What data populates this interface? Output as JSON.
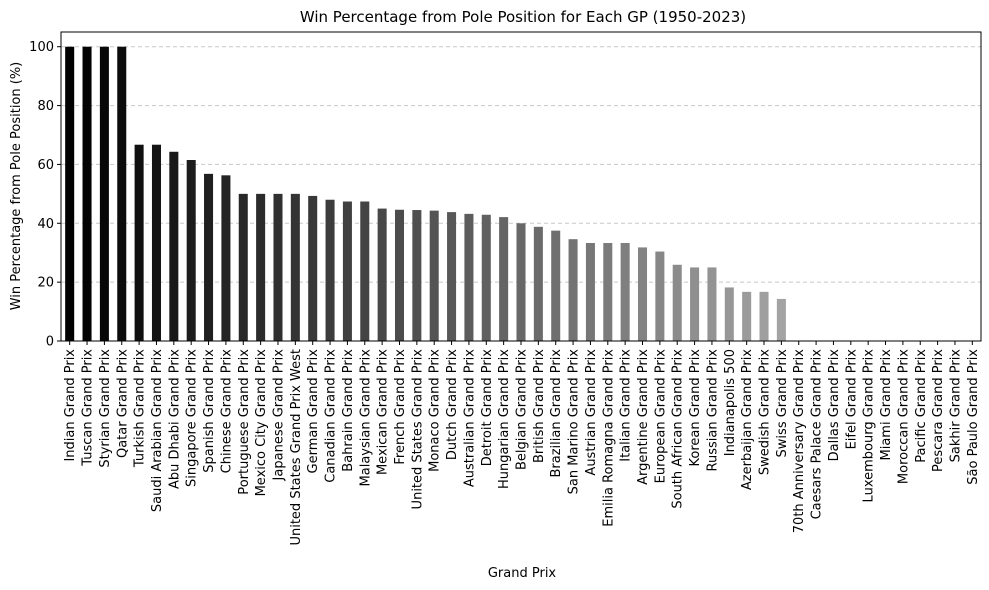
{
  "chart_data": {
    "type": "bar",
    "title": "Win Percentage from Pole Position for Each GP (1950-2023)",
    "xlabel": "Grand Prix",
    "ylabel": "Win Percentage from Pole Position (%)",
    "ylim": [
      0,
      105
    ],
    "yticks": [
      0,
      20,
      40,
      60,
      80,
      100
    ],
    "grid": "y-dashed",
    "categories": [
      "Indian Grand Prix",
      "Tuscan Grand Prix",
      "Styrian Grand Prix",
      "Qatar Grand Prix",
      "Turkish Grand Prix",
      "Saudi Arabian Grand Prix",
      "Abu Dhabi Grand Prix",
      "Singapore Grand Prix",
      "Spanish Grand Prix",
      "Chinese Grand Prix",
      "Portuguese Grand Prix",
      "Mexico City Grand Prix",
      "Japanese Grand Prix",
      "United States Grand Prix West",
      "German Grand Prix",
      "Canadian Grand Prix",
      "Bahrain Grand Prix",
      "Malaysian Grand Prix",
      "Mexican Grand Prix",
      "French Grand Prix",
      "United States Grand Prix",
      "Monaco Grand Prix",
      "Dutch Grand Prix",
      "Australian Grand Prix",
      "Detroit Grand Prix",
      "Hungarian Grand Prix",
      "Belgian Grand Prix",
      "British Grand Prix",
      "Brazilian Grand Prix",
      "San Marino Grand Prix",
      "Austrian Grand Prix",
      "Emilia Romagna Grand Prix",
      "Italian Grand Prix",
      "Argentine Grand Prix",
      "European Grand Prix",
      "South African Grand Prix",
      "Korean Grand Prix",
      "Russian Grand Prix",
      "Indianapolis 500",
      "Azerbaijan Grand Prix",
      "Swedish Grand Prix",
      "Swiss Grand Prix",
      "70th Anniversary Grand Prix",
      "Caesars Palace Grand Prix",
      "Dallas Grand Prix",
      "Eifel Grand Prix",
      "Luxembourg Grand Prix",
      "Miami Grand Prix",
      "Moroccan Grand Prix",
      "Pacific Grand Prix",
      "Pescara Grand Prix",
      "Sakhir Grand Prix",
      "São Paulo Grand Prix"
    ],
    "values": [
      100,
      100,
      100,
      100,
      66.7,
      66.7,
      64.3,
      61.5,
      56.8,
      56.3,
      50,
      50,
      50,
      50,
      49.3,
      48,
      47.4,
      47.4,
      45,
      44.6,
      44.5,
      44.3,
      43.8,
      43.2,
      42.9,
      42.1,
      40,
      38.8,
      37.5,
      34.6,
      33.3,
      33.3,
      33.3,
      31.8,
      30.4,
      25.9,
      25,
      25,
      18.2,
      16.7,
      16.7,
      14.3,
      0,
      0,
      0,
      0,
      0,
      0,
      0,
      0,
      0,
      0,
      0
    ],
    "color_scale": [
      "#000000",
      "#cfcfcf"
    ],
    "axis_color": "#000000",
    "grid_color": "#c8c8c8"
  }
}
